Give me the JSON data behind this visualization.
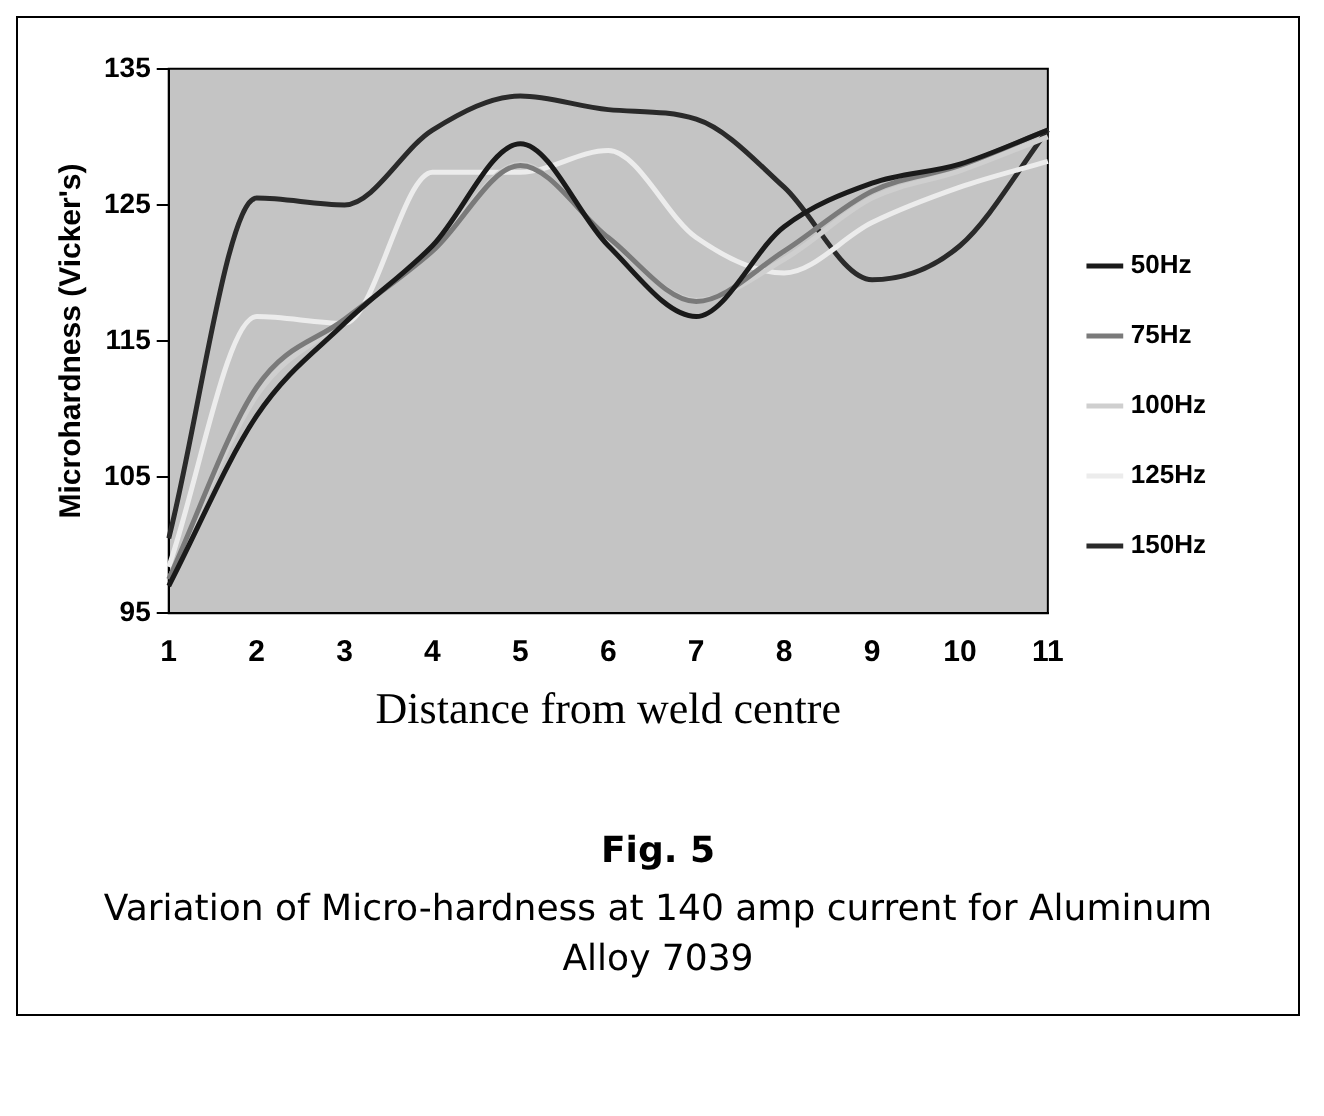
{
  "chart_data": {
    "type": "line",
    "xlabel": "Distance from weld centre",
    "ylabel": "Microhardness (Vicker's)",
    "categories": [
      "1",
      "2",
      "3",
      "4",
      "5",
      "6",
      "7",
      "8",
      "9",
      "10",
      "11"
    ],
    "series": [
      {
        "name": "50Hz",
        "color": "#1a1a1a",
        "values": [
          97,
          109.5,
          116.3,
          122,
          129.5,
          122,
          116.8,
          123.4,
          126.6,
          128,
          130.5
        ]
      },
      {
        "name": "75Hz",
        "color": "#7a7a7a",
        "values": [
          97.5,
          111.6,
          116.6,
          121.6,
          127.9,
          122.6,
          117.9,
          121.6,
          126,
          127.9,
          130.5
        ]
      },
      {
        "name": "100Hz",
        "color": "#cfcfcf",
        "values": [
          97.5,
          111,
          116.5,
          121.8,
          128,
          122.5,
          118,
          121,
          125.5,
          127.5,
          130
        ]
      },
      {
        "name": "125Hz",
        "color": "#ececec",
        "values": [
          98.4,
          116.8,
          116.3,
          127.4,
          127.4,
          129,
          122.6,
          120,
          123.7,
          126.3,
          128.2
        ]
      },
      {
        "name": "150Hz",
        "color": "#2a2a2a",
        "values": [
          100.5,
          125.5,
          125,
          130.5,
          133,
          132,
          131.3,
          126.3,
          119.5,
          122,
          130.5
        ]
      }
    ],
    "ylim": [
      95,
      135
    ],
    "yticks": [
      95,
      105,
      115,
      125,
      135
    ],
    "grid": false,
    "legend": "right",
    "marker": "none",
    "line_style": "solid",
    "annotations": [
      "Fig. 5",
      "Variation of Micro-hardness at 140 amp current for Aluminum Alloy 7039"
    ]
  }
}
